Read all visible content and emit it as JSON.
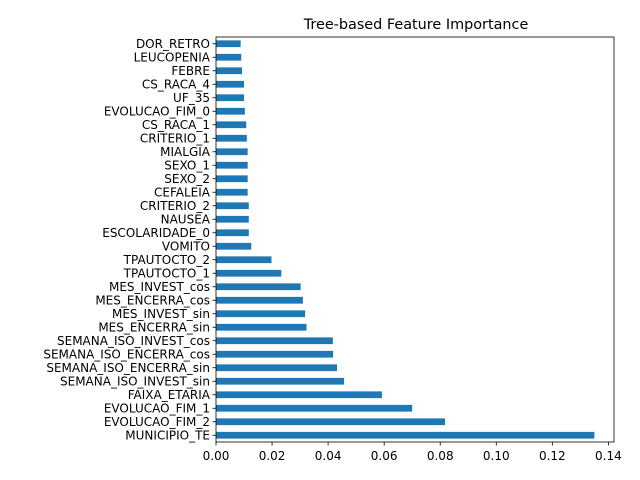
{
  "chart_data": {
    "type": "bar",
    "orientation": "horizontal",
    "title": "Tree-based Feature Importance",
    "xlabel": "",
    "ylabel": "",
    "xlim": [
      0,
      0.142
    ],
    "xticks": [
      0.0,
      0.02,
      0.04,
      0.06,
      0.08,
      0.1,
      0.12,
      0.14
    ],
    "xtick_labels": [
      "0.00",
      "0.02",
      "0.04",
      "0.06",
      "0.08",
      "0.10",
      "0.12",
      "0.14"
    ],
    "grid": false,
    "bar_color": "#1f77b4",
    "categories": [
      "MUNICIPIO_TE",
      "EVOLUCAO_FIM_2",
      "EVOLUCAO_FIM_1",
      "FAIXA_ETARIA",
      "SEMANA_ISO_INVEST_sin",
      "SEMANA_ISO_ENCERRA_sin",
      "SEMANA_ISO_ENCERRA_cos",
      "SEMANA_ISO_INVEST_cos",
      "MES_ENCERRA_sin",
      "MES_INVEST_sin",
      "MES_ENCERRA_cos",
      "MES_INVEST_cos",
      "TPAUTOCTO_1",
      "TPAUTOCTO_2",
      "VOMITO",
      "ESCOLARIDADE_0",
      "NAUSEA",
      "CRITERIO_2",
      "CEFALEIA",
      "SEXO_2",
      "SEXO_1",
      "MIALGIA",
      "CRITERIO_1",
      "CS_RACA_1",
      "EVOLUCAO_FIM_0",
      "UF_35",
      "CS_RACA_4",
      "FEBRE",
      "LEUCOPENIA",
      "DOR_RETRO"
    ],
    "values": [
      0.135,
      0.0817,
      0.07,
      0.0592,
      0.0457,
      0.0432,
      0.0418,
      0.0417,
      0.0323,
      0.0318,
      0.031,
      0.0302,
      0.0233,
      0.0198,
      0.0126,
      0.0117,
      0.0117,
      0.0117,
      0.0113,
      0.0113,
      0.0113,
      0.0113,
      0.011,
      0.0108,
      0.0103,
      0.01,
      0.01,
      0.0093,
      0.009,
      0.0088
    ]
  }
}
